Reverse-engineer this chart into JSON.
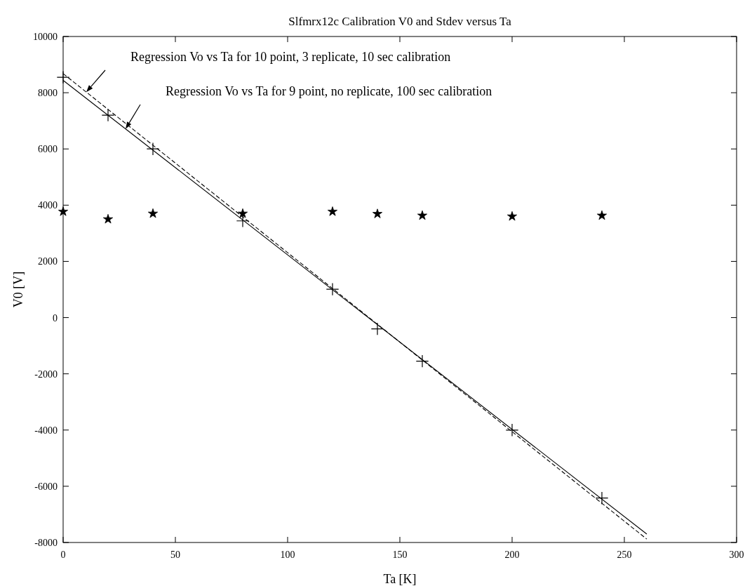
{
  "chart_data": {
    "type": "scatter",
    "title": "Slfmrx12c Calibration V0 and Stdev versus Ta",
    "xlabel": "Ta [K]",
    "ylabel": "V0 [V]",
    "xlim": [
      0,
      300
    ],
    "xticks": [
      0,
      50,
      100,
      150,
      200,
      250,
      300
    ],
    "ylim": [
      -8000,
      10000
    ],
    "yticks": [
      -8000,
      -6000,
      -4000,
      -2000,
      0,
      2000,
      4000,
      6000,
      8000,
      10000
    ],
    "grid": false,
    "annotations": [
      "Regression Vo vs Ta for 10 point, 3 replicate, 10 sec calibration",
      "Regression Vo vs Ta for 9 point, no replicate, 100 sec calibration"
    ],
    "series": [
      {
        "type": "scatter",
        "marker": "cross",
        "color": "#000000",
        "x": [
          0,
          20,
          40,
          80,
          120,
          140,
          160,
          200,
          240
        ],
        "values": [
          8550,
          7200,
          6000,
          3440,
          1010,
          -400,
          -1550,
          -4000,
          -6420
        ]
      },
      {
        "type": "scatter",
        "marker": "star",
        "color": "#000000",
        "x": [
          0,
          20,
          40,
          80,
          120,
          140,
          160,
          200,
          240
        ],
        "values": [
          3770,
          3500,
          3700,
          3700,
          3770,
          3690,
          3630,
          3600,
          3630
        ]
      },
      {
        "type": "line",
        "line_style": "dashed",
        "marker": "none",
        "color": "#000000",
        "x": [
          0,
          260
        ],
        "values": [
          8680,
          -7880
        ]
      },
      {
        "type": "line",
        "line_style": "solid",
        "marker": "none",
        "color": "#000000",
        "x": [
          0,
          260
        ],
        "values": [
          8440,
          -7700
        ]
      }
    ]
  }
}
